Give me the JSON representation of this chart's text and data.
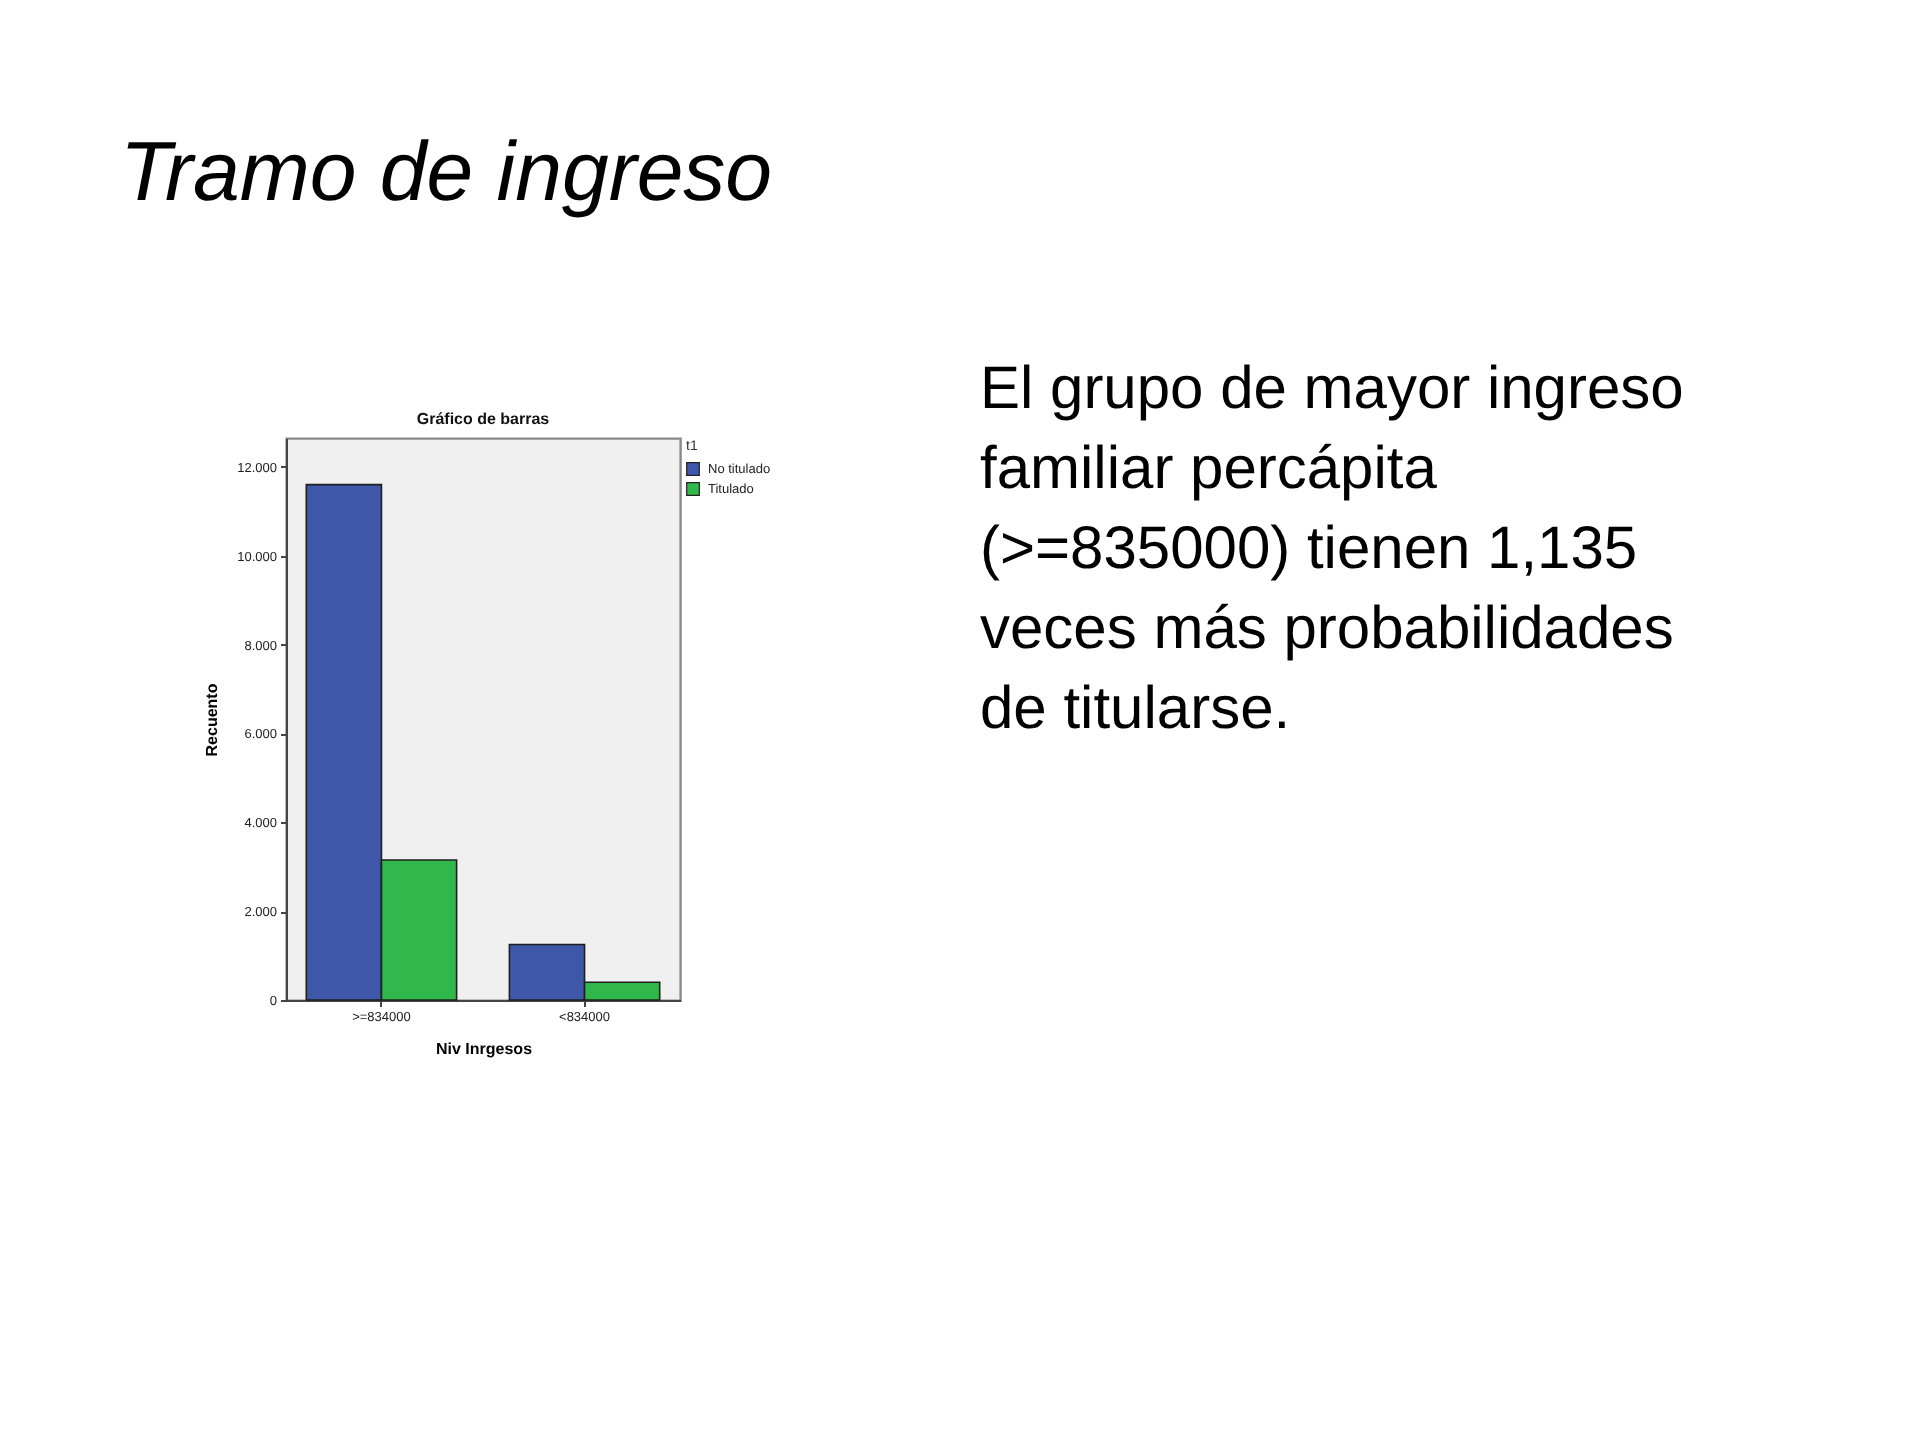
{
  "chart_data": {
    "type": "bar",
    "title": "Tramo de ingreso",
    "subtitle": "Gráfico de barras",
    "xlabel": "Niv Inrgesos",
    "ylabel": "Recuento",
    "legend_title": "t1",
    "annotations": [
      "El grupo de mayor ingreso familiar percápita (>=835000) tienen 1,135 veces más probabilidades de titularse."
    ],
    "categories": [
      ">=834000",
      "<834000"
    ],
    "series": [
      {
        "name": "No titulado",
        "color": "#3f57a9",
        "values": [
          11600,
          1250
        ]
      },
      {
        "name": "Titulado",
        "color": "#30b84c",
        "values": [
          3150,
          400
        ]
      }
    ],
    "ylim": [
      0,
      12650
    ],
    "yticks": [
      0,
      {
        "value": 2000,
        "label": "2.000"
      },
      {
        "value": 4000,
        "label": "4.000"
      },
      {
        "value": 6000,
        "label": "6.000"
      },
      {
        "value": 8000,
        "label": "8.000"
      },
      {
        "value": 10000,
        "label": "10.000"
      },
      {
        "value": 12000,
        "label": "12.000"
      }
    ],
    "legend": "top right"
  }
}
